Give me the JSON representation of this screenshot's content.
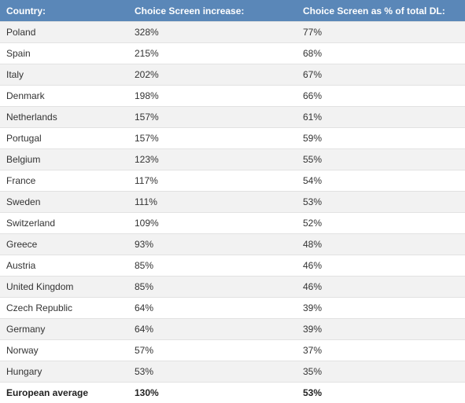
{
  "table": {
    "headers": [
      "Country:",
      "Choice Screen increase:",
      "Choice Screen as % of total DL:"
    ],
    "rows": [
      [
        "Poland",
        "328%",
        "77%"
      ],
      [
        "Spain",
        "215%",
        "68%"
      ],
      [
        "Italy",
        "202%",
        "67%"
      ],
      [
        "Denmark",
        "198%",
        "66%"
      ],
      [
        "Netherlands",
        "157%",
        "61%"
      ],
      [
        "Portugal",
        "157%",
        "59%"
      ],
      [
        "Belgium",
        "123%",
        "55%"
      ],
      [
        "France",
        "117%",
        "54%"
      ],
      [
        "Sweden",
        "111%",
        "53%"
      ],
      [
        "Switzerland",
        "109%",
        "52%"
      ],
      [
        "Greece",
        "93%",
        "48%"
      ],
      [
        "Austria",
        "85%",
        "46%"
      ],
      [
        "United Kingdom",
        "85%",
        "46%"
      ],
      [
        "Czech Republic",
        "64%",
        "39%"
      ],
      [
        "Germany",
        "64%",
        "39%"
      ],
      [
        "Norway",
        "57%",
        "37%"
      ],
      [
        "Hungary",
        "53%",
        "35%"
      ]
    ],
    "total": [
      "European average",
      "130%",
      "53%"
    ]
  },
  "colors": {
    "header_bg": "#5a87b8",
    "header_text": "#ffffff",
    "stripe": "#f2f2f2"
  }
}
